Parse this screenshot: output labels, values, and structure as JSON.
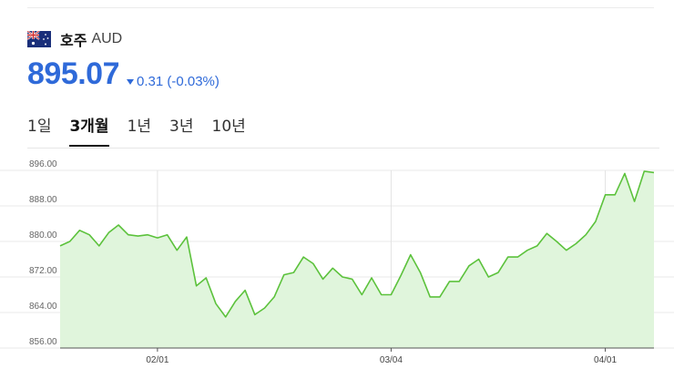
{
  "currency": {
    "name": "호주",
    "code": "AUD",
    "flag_icon": "australia-flag-icon",
    "price": "895.07",
    "change": "0.31 (-0.03%)",
    "change_direction": "down",
    "accent_color": "#2f6ad9"
  },
  "tabs": [
    {
      "label": "1일",
      "active": false
    },
    {
      "label": "3개월",
      "active": true
    },
    {
      "label": "1년",
      "active": false
    },
    {
      "label": "3년",
      "active": false
    },
    {
      "label": "10년",
      "active": false
    }
  ],
  "chart_data": {
    "type": "area",
    "line_color": "#5cc23c",
    "fill_color": "#e0f5dc",
    "ylim": [
      856,
      896
    ],
    "y_ticks": [
      "896.00",
      "888.00",
      "880.00",
      "872.00",
      "864.00",
      "856.00"
    ],
    "x_ticks": [
      {
        "label": "02/01",
        "index": 10
      },
      {
        "label": "03/04",
        "index": 34
      },
      {
        "label": "04/01",
        "index": 56
      }
    ],
    "values": [
      879.0,
      880.0,
      882.5,
      881.5,
      879.0,
      882.0,
      883.7,
      881.5,
      881.2,
      881.5,
      880.8,
      881.5,
      878.0,
      881.0,
      870.0,
      871.8,
      866.0,
      863.0,
      866.5,
      869.0,
      863.5,
      865.0,
      867.5,
      872.5,
      873.0,
      876.5,
      875.0,
      871.5,
      874.0,
      872.0,
      871.5,
      868.0,
      871.8,
      868.0,
      868.0,
      872.3,
      877.0,
      873.0,
      867.5,
      867.5,
      871.0,
      871.0,
      874.5,
      876.0,
      872.0,
      873.0,
      876.5,
      876.5,
      878.0,
      879.0,
      881.8,
      880.0,
      878.0,
      879.5,
      881.5,
      884.5,
      890.5,
      890.5,
      895.3,
      889.0,
      895.8,
      895.5
    ]
  }
}
